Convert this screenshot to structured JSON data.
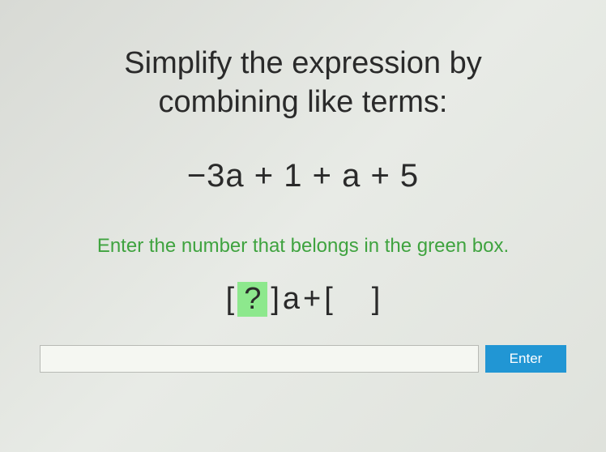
{
  "question": {
    "title_line1": "Simplify the expression by",
    "title_line2": "combining like terms:",
    "expression": "−3a + 1 + a + 5"
  },
  "instruction": "Enter the number that belongs in the green box.",
  "answer_template": {
    "bracket_open": "[",
    "bracket_close": "]",
    "green_content": "?",
    "variable": "a",
    "plus": " + ",
    "gray_content": " "
  },
  "input": {
    "value": ""
  },
  "button": {
    "enter_label": "Enter"
  },
  "colors": {
    "green_box": "#8de88d",
    "gray_box": "#c5c7c3",
    "instruction_text": "#3fa33f",
    "button_bg": "#2196d4",
    "text": "#2a2a2a"
  }
}
